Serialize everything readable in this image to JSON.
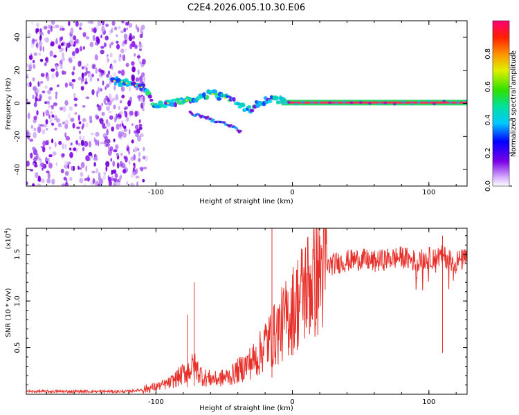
{
  "title": "C2E4.2026.005.10.30.E06",
  "chart_data": [
    {
      "type": "heatmap",
      "title": "C2E4.2026.005.10.30.E06",
      "xlabel": "Height of straight line (km)",
      "ylabel": "Frequency (Hz)",
      "xlim": [
        -195,
        128
      ],
      "ylim": [
        -50,
        50
      ],
      "xticks": [
        -100,
        0,
        100
      ],
      "xtick_labels": [
        "-100",
        "0",
        "100"
      ],
      "yticks": [
        -40,
        -20,
        0,
        20,
        40
      ],
      "ytick_labels": [
        "-40",
        "-20",
        "0",
        "20",
        "40"
      ],
      "noise_region_x": [
        -195,
        -107
      ],
      "signal_track": {
        "x": [
          -133,
          -125,
          -115,
          -107,
          -104,
          -100,
          -92,
          -85,
          -78,
          -70,
          -60,
          -52,
          -45,
          -38,
          -32,
          -25,
          -20,
          -15,
          -10,
          -5,
          0,
          20,
          60,
          100,
          128
        ],
        "y": [
          14,
          13,
          11,
          9,
          2,
          -1,
          0,
          1,
          2,
          3,
          6,
          4,
          2,
          -2,
          -4,
          0,
          2,
          3,
          2,
          1,
          0.5,
          0.5,
          0.5,
          0.5,
          0.5
        ]
      },
      "secondary_track": {
        "x": [
          -75,
          -65,
          -55,
          -48,
          -42,
          -38
        ],
        "y": [
          -6,
          -8,
          -11,
          -13,
          -15,
          -17
        ]
      },
      "colorbar": {
        "label": "Normalized spectral amplitude",
        "range": [
          0,
          1
        ],
        "ticks": [
          0.0,
          0.2,
          0.4,
          0.6,
          0.8
        ],
        "tick_labels": [
          "0.0",
          "0.2",
          "0.4",
          "0.6",
          "0.8"
        ]
      }
    },
    {
      "type": "line",
      "xlabel": "Height of straight line (km)",
      "ylabel": "SNR (10 * v/v)",
      "y_multiplier": "(x10",
      "y_multiplier_exp": "4",
      "y_multiplier_close": ")",
      "xlim": [
        -195,
        128
      ],
      "ylim": [
        0,
        1.78
      ],
      "xticks": [
        -100,
        0,
        100
      ],
      "xtick_labels": [
        "-100",
        "0",
        "100"
      ],
      "yticks": [
        0.5,
        1.0,
        1.5
      ],
      "ytick_labels": [
        "0.5",
        "1.0",
        "1.5"
      ],
      "color": "#e8302a",
      "envelope": {
        "x": [
          -195,
          -120,
          -110,
          -100,
          -90,
          -80,
          -72,
          -65,
          -55,
          -45,
          -35,
          -25,
          -20,
          -15,
          -10,
          -5,
          0,
          10,
          20,
          30,
          40,
          50,
          60,
          70,
          80,
          90,
          100,
          110,
          120,
          128
        ],
        "y": [
          0.03,
          0.03,
          0.05,
          0.08,
          0.12,
          0.22,
          0.3,
          0.18,
          0.16,
          0.2,
          0.3,
          0.4,
          0.55,
          0.6,
          0.7,
          0.8,
          0.9,
          1.15,
          1.32,
          1.4,
          1.43,
          1.45,
          1.42,
          1.45,
          1.47,
          1.43,
          1.46,
          1.48,
          1.43,
          1.45
        ]
      },
      "peaks": {
        "x": [
          -77,
          -72,
          -15,
          110
        ],
        "y": [
          0.85,
          1.2,
          1.78,
          1.7
        ]
      }
    }
  ]
}
